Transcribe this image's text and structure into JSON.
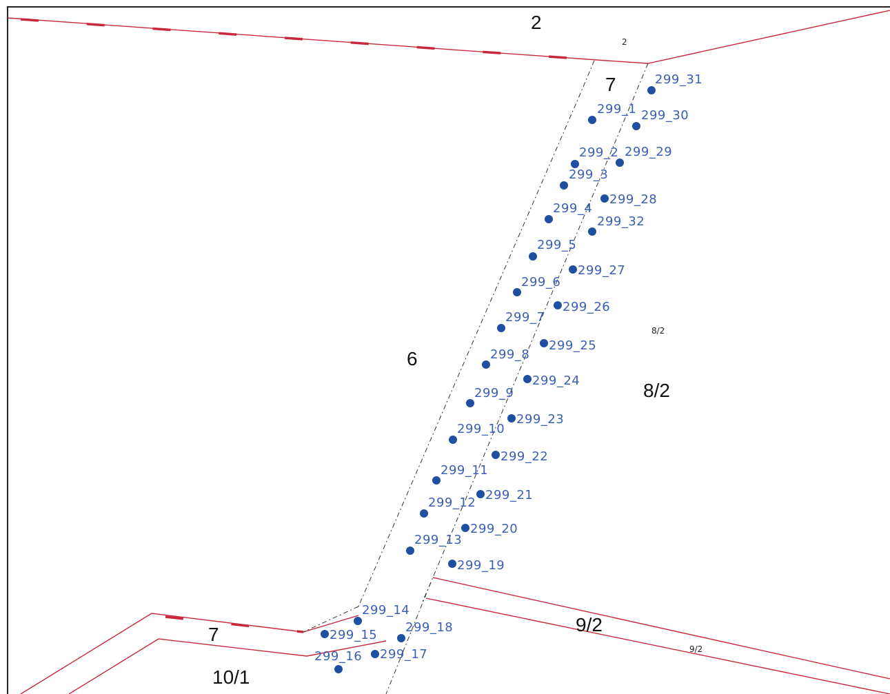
{
  "parcels": {
    "p2_top": "2",
    "p2_small": "2",
    "p7_top": "7",
    "p6": "6",
    "p8_2": "8/2",
    "p8_2_small": "8/2",
    "p9_2": "9/2",
    "p9_2_small": "9/2",
    "p7_bottom": "7",
    "p10_1": "10/1"
  },
  "points": [
    {
      "label": "299_31"
    },
    {
      "label": "299_1"
    },
    {
      "label": "299_30"
    },
    {
      "label": "299_2"
    },
    {
      "label": "299_29"
    },
    {
      "label": "299_3"
    },
    {
      "label": "299_28"
    },
    {
      "label": "299_4"
    },
    {
      "label": "299_32"
    },
    {
      "label": "299_5"
    },
    {
      "label": "299_27"
    },
    {
      "label": "299_6"
    },
    {
      "label": "299_26"
    },
    {
      "label": "299_7"
    },
    {
      "label": "299_25"
    },
    {
      "label": "299_8"
    },
    {
      "label": "299_24"
    },
    {
      "label": "299_9"
    },
    {
      "label": "299_23"
    },
    {
      "label": "299_10"
    },
    {
      "label": "299_22"
    },
    {
      "label": "299_11"
    },
    {
      "label": "299_21"
    },
    {
      "label": "299_12"
    },
    {
      "label": "299_20"
    },
    {
      "label": "299_13"
    },
    {
      "label": "299_19"
    },
    {
      "label": "299_14"
    },
    {
      "label": "299_18"
    },
    {
      "label": "299_15"
    },
    {
      "label": "299_17"
    },
    {
      "label": "299_16"
    }
  ],
  "colors": {
    "boundary": "#c8283c",
    "point": "#1f4fa0",
    "point_label": "#3a5fb5"
  }
}
